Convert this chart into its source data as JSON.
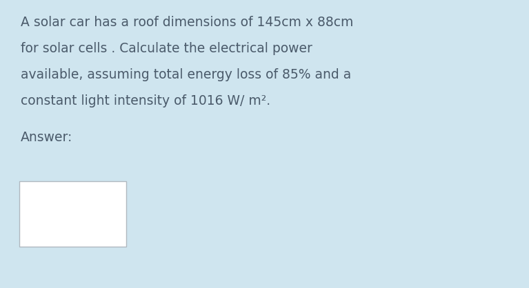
{
  "background_color": "#cfe5ef",
  "text_color": "#4a5a6a",
  "line1": "A solar car has a roof dimensions of 145cm x 88cm",
  "line2": "for solar cells . Calculate the electrical power",
  "line3": "available, assuming total energy loss of 85% and a",
  "line4": "constant light intensity of 1016 W/ m².",
  "answer_label": "Answer:",
  "font_size": 13.5,
  "answer_font_size": 13.5,
  "box_color": "#ffffff",
  "box_edge_color": "#b0b8c0"
}
